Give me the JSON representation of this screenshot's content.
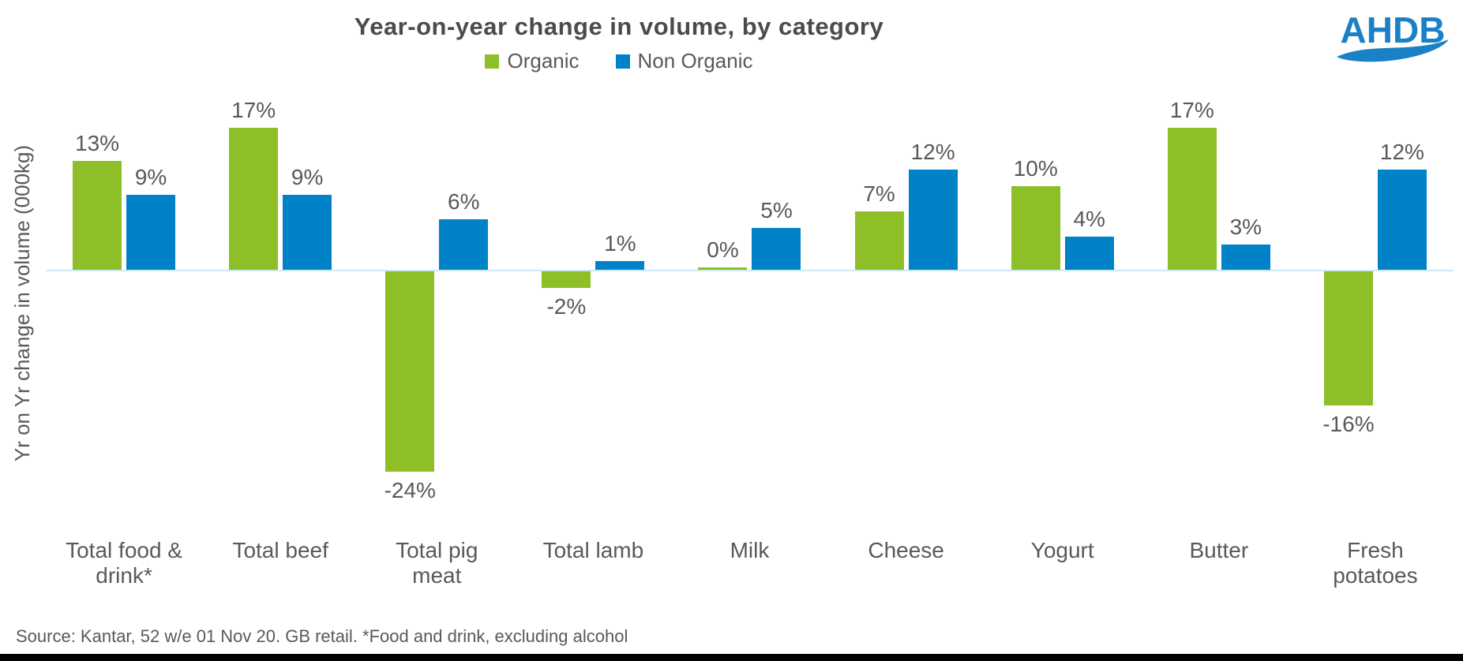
{
  "title": "Year-on-year change in volume, by category",
  "logo": {
    "text": "AHDB"
  },
  "source": "Source: Kantar, 52 w/e 01 Nov 20. GB retail. *Food and drink, excluding alcohol",
  "colors": {
    "organic_green": "#8ebe28",
    "non_organic_blue": "#0082c9",
    "baseline_blue": "#cde9f6",
    "text_gray": "#595959",
    "title_gray": "#4b4b4b",
    "brand_blue": "#1b81c6",
    "bottom_bar_black": "#000000"
  },
  "chart_data": {
    "type": "bar",
    "title": "Year-on-year change in volume, by category",
    "categories": [
      "Total food & drink*",
      "Total beef",
      "Total pig meat",
      "Total lamb",
      "Milk",
      "Cheese",
      "Yogurt",
      "Butter",
      "Fresh potatoes"
    ],
    "series": [
      {
        "name": "Organic",
        "color": "#8ebe28",
        "values": [
          13,
          17,
          -24,
          -2,
          0,
          7,
          10,
          17,
          -16
        ]
      },
      {
        "name": "Non Organic",
        "color": "#0082c9",
        "values": [
          9,
          9,
          6,
          1,
          5,
          12,
          4,
          3,
          12
        ]
      }
    ],
    "data_labels": [
      "13%",
      "9%",
      "17%",
      "9%",
      "-24%",
      "6%",
      "-2%",
      "1%",
      "0%",
      "5%",
      "7%",
      "12%",
      "10%",
      "4%",
      "17%",
      "3%",
      "-16%",
      "12%"
    ],
    "unit": "%",
    "xlabel": "",
    "ylabel": "Yr on Yr change in volume (000kg)",
    "ylim": [
      -26,
      20
    ],
    "grid": false,
    "legend_position": "top",
    "zero_axis_line": true
  }
}
